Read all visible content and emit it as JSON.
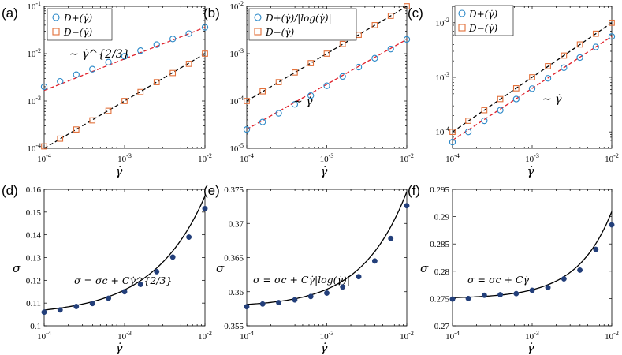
{
  "chart_data": [
    {
      "panel": "(a)",
      "type": "scatter",
      "xscale": "log",
      "yscale": "log",
      "xlim": [
        0.0001,
        0.01
      ],
      "ylim": [
        0.0001,
        0.1
      ],
      "xticks": [
        "10^-4",
        "10^-3",
        "10^-2"
      ],
      "yticks": [
        "10^-4",
        "10^-3",
        "10^-2",
        "10^-1"
      ],
      "xlabel": "γ̇",
      "ylabel": "",
      "legend_position": "top-left",
      "series": [
        {
          "name": "D+(γ̇)",
          "marker": "circle",
          "color": "#2a88c8",
          "x": [
            0.0001,
            0.000158,
            0.000251,
            0.000398,
            0.000631,
            0.001,
            0.00158,
            0.00251,
            0.00398,
            0.00631,
            0.01
          ],
          "values": [
            0.002,
            0.0026,
            0.0036,
            0.0047,
            0.0066,
            0.0088,
            0.0116,
            0.0155,
            0.0205,
            0.0265,
            0.036
          ],
          "fit": {
            "label": "∼ γ̇^{2/3}",
            "exponent": 0.6667,
            "color": "#e0202a",
            "dash": true
          }
        },
        {
          "name": "D−(γ̇)",
          "marker": "square",
          "color": "#e2703a",
          "x": [
            0.0001,
            0.000158,
            0.000251,
            0.000398,
            0.000631,
            0.001,
            0.00158,
            0.00251,
            0.00398,
            0.00631,
            0.01
          ],
          "values": [
            0.00011,
            0.00016,
            0.00025,
            0.00039,
            0.00062,
            0.001,
            0.00155,
            0.0025,
            0.0039,
            0.0061,
            0.01
          ],
          "fit": {
            "exponent": 1,
            "color": "#000000",
            "dash": true
          }
        }
      ],
      "annotations": [
        {
          "text": "∼ γ̇^{2/3}"
        }
      ]
    },
    {
      "panel": "(b)",
      "type": "scatter",
      "xscale": "log",
      "yscale": "log",
      "xlim": [
        0.0001,
        0.01
      ],
      "ylim": [
        1e-05,
        0.01
      ],
      "xticks": [
        "10^-4",
        "10^-3",
        "10^-2"
      ],
      "yticks": [
        "10^-5",
        "10^-4",
        "10^-3",
        "10^-2"
      ],
      "xlabel": "γ̇",
      "ylabel": "",
      "legend_position": "top-left",
      "series": [
        {
          "name": "D+(γ̇)/|log(γ̇)|",
          "marker": "circle",
          "color": "#2a88c8",
          "x": [
            0.0001,
            0.000158,
            0.000251,
            0.000398,
            0.000631,
            0.001,
            0.00158,
            0.00251,
            0.00398,
            0.00631,
            0.01
          ],
          "values": [
            2.5e-05,
            3.6e-05,
            5.5e-05,
            8.5e-05,
            0.00013,
            0.00021,
            0.00033,
            0.00052,
            0.0008,
            0.00125,
            0.002
          ],
          "fit": {
            "exponent": 0.95,
            "color": "#e0202a",
            "dash": true
          }
        },
        {
          "name": "D−(γ̇)",
          "marker": "square",
          "color": "#e2703a",
          "x": [
            0.0001,
            0.000158,
            0.000251,
            0.000398,
            0.000631,
            0.001,
            0.00158,
            0.00251,
            0.00398,
            0.00631,
            0.01
          ],
          "values": [
            0.0001,
            0.00016,
            0.00025,
            0.0004,
            0.00063,
            0.001,
            0.0016,
            0.0025,
            0.004,
            0.0063,
            0.01
          ],
          "fit": {
            "exponent": 1,
            "color": "#000000",
            "dash": true
          }
        }
      ],
      "annotations": [
        {
          "text": "∼ γ̇"
        }
      ]
    },
    {
      "panel": "(c)",
      "type": "scatter",
      "xscale": "log",
      "yscale": "log",
      "xlim": [
        0.0001,
        0.01
      ],
      "ylim": [
        5e-05,
        0.02
      ],
      "xticks": [
        "10^-4",
        "10^-3",
        "10^-2"
      ],
      "yticks": [
        "10^-4",
        "10^-3",
        "10^-2"
      ],
      "xlabel": "γ̇",
      "ylabel": "",
      "legend_position": "top-left",
      "series": [
        {
          "name": "D+(γ̇)",
          "marker": "circle",
          "color": "#2a88c8",
          "x": [
            0.0001,
            0.000158,
            0.000251,
            0.000398,
            0.000631,
            0.001,
            0.00158,
            0.00251,
            0.00398,
            0.00631,
            0.01
          ],
          "values": [
            6.5e-05,
            0.0001,
            0.00016,
            0.00025,
            0.0004,
            0.00062,
            0.00096,
            0.0015,
            0.0023,
            0.0036,
            0.0056
          ],
          "fit": {
            "exponent": 0.95,
            "color": "#e0202a",
            "dash": true
          }
        },
        {
          "name": "D−(γ̇)",
          "marker": "square",
          "color": "#e2703a",
          "x": [
            0.0001,
            0.000158,
            0.000251,
            0.000398,
            0.000631,
            0.001,
            0.00158,
            0.00251,
            0.00398,
            0.00631,
            0.01
          ],
          "values": [
            0.0001,
            0.00016,
            0.00025,
            0.0004,
            0.00063,
            0.001,
            0.0016,
            0.0025,
            0.004,
            0.0063,
            0.01
          ],
          "fit": {
            "exponent": 1,
            "color": "#000000",
            "dash": true
          }
        }
      ],
      "annotations": [
        {
          "text": "∼ γ̇"
        }
      ]
    },
    {
      "panel": "(d)",
      "type": "scatter",
      "xscale": "log",
      "yscale": "linear",
      "xlim": [
        0.0001,
        0.01
      ],
      "ylim": [
        0.1,
        0.16
      ],
      "xticks": [
        "10^-4",
        "10^-3",
        "10^-2"
      ],
      "yticks": [
        "0.1",
        "0.11",
        "0.12",
        "0.13",
        "0.14",
        "0.15",
        "0.16"
      ],
      "xlabel": "γ̇",
      "ylabel": "σ",
      "series": [
        {
          "name": "σ",
          "marker": "filled-circle",
          "color": "#233f7a",
          "x": [
            0.0001,
            0.000158,
            0.000251,
            0.000398,
            0.000631,
            0.001,
            0.00158,
            0.00251,
            0.00398,
            0.00631,
            0.01
          ],
          "values": [
            0.106,
            0.107,
            0.1085,
            0.1098,
            0.1121,
            0.115,
            0.1182,
            0.1238,
            0.1302,
            0.139,
            0.1515
          ],
          "fit": {
            "sigma_c": 0.1045,
            "exponent": 0.6667,
            "color": "#000000",
            "dash": false
          }
        }
      ],
      "annotations": [
        {
          "text": "σ = σc + Cγ̇^{2/3}"
        }
      ]
    },
    {
      "panel": "(e)",
      "type": "scatter",
      "xscale": "log",
      "yscale": "linear",
      "xlim": [
        0.0001,
        0.01
      ],
      "ylim": [
        0.355,
        0.375
      ],
      "xticks": [
        "10^-4",
        "10^-3",
        "10^-2"
      ],
      "yticks": [
        "0.355",
        "0.36",
        "0.365",
        "0.37",
        "0.375"
      ],
      "xlabel": "γ̇",
      "ylabel": "σ",
      "series": [
        {
          "name": "σ",
          "marker": "filled-circle",
          "color": "#233f7a",
          "x": [
            0.0001,
            0.000158,
            0.000251,
            0.000398,
            0.000631,
            0.001,
            0.00158,
            0.00251,
            0.00398,
            0.00631,
            0.01
          ],
          "values": [
            0.3578,
            0.3582,
            0.3584,
            0.3588,
            0.3593,
            0.3598,
            0.3607,
            0.3622,
            0.3645,
            0.3678,
            0.3726
          ],
          "fit": {
            "sigma_c": 0.3578,
            "exponent": 1,
            "color": "#000000",
            "dash": false
          }
        }
      ],
      "annotations": [
        {
          "text": "σ = σc + Cγ̇|log(γ̇)|"
        }
      ]
    },
    {
      "panel": "(f)",
      "type": "scatter",
      "xscale": "log",
      "yscale": "linear",
      "xlim": [
        0.0001,
        0.01
      ],
      "ylim": [
        0.27,
        0.295
      ],
      "xticks": [
        "10^-4",
        "10^-3",
        "10^-2"
      ],
      "yticks": [
        "0.27",
        "0.275",
        "0.28",
        "0.285",
        "0.29",
        "0.295"
      ],
      "xlabel": "γ̇",
      "ylabel": "σ",
      "series": [
        {
          "name": "σ",
          "marker": "filled-circle",
          "color": "#233f7a",
          "x": [
            0.0001,
            0.000158,
            0.000251,
            0.000398,
            0.000631,
            0.001,
            0.00158,
            0.00251,
            0.00398,
            0.00631,
            0.01
          ],
          "values": [
            0.2749,
            0.275,
            0.2756,
            0.2757,
            0.2759,
            0.2765,
            0.277,
            0.2786,
            0.2802,
            0.284,
            0.2885
          ],
          "fit": {
            "sigma_c": 0.275,
            "exponent": 1,
            "color": "#000000",
            "dash": false
          }
        }
      ],
      "annotations": [
        {
          "text": "σ = σc + Cγ̇"
        }
      ]
    }
  ]
}
